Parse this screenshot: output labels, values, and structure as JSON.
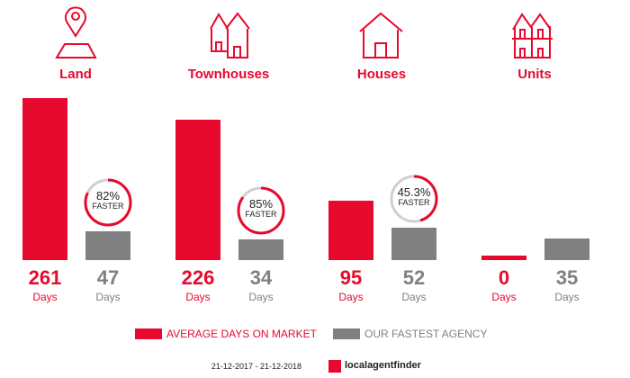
{
  "chart_data": {
    "type": "bar",
    "categories": [
      "Land",
      "Townhouses",
      "Houses",
      "Units"
    ],
    "series": [
      {
        "name": "AVERAGE DAYS ON MARKET",
        "color": "#e8092e",
        "values": [
          261,
          226,
          95,
          0
        ]
      },
      {
        "name": "OUR FASTEST AGENCY",
        "color": "#808080",
        "values": [
          47,
          34,
          52,
          35
        ]
      }
    ],
    "faster": [
      {
        "label": "82%",
        "pct": 82
      },
      {
        "label": "85%",
        "pct": 85
      },
      {
        "label": "45.3%",
        "pct": 45.3
      },
      null
    ],
    "faster_word": "FASTER",
    "unit": "Days",
    "ylim": [
      0,
      261
    ]
  },
  "footer": {
    "date_range": "21-12-2017 - 21-12-2018",
    "logo": "localagentfinder"
  },
  "colors": {
    "accent": "#e8092e",
    "gray": "#808080"
  }
}
